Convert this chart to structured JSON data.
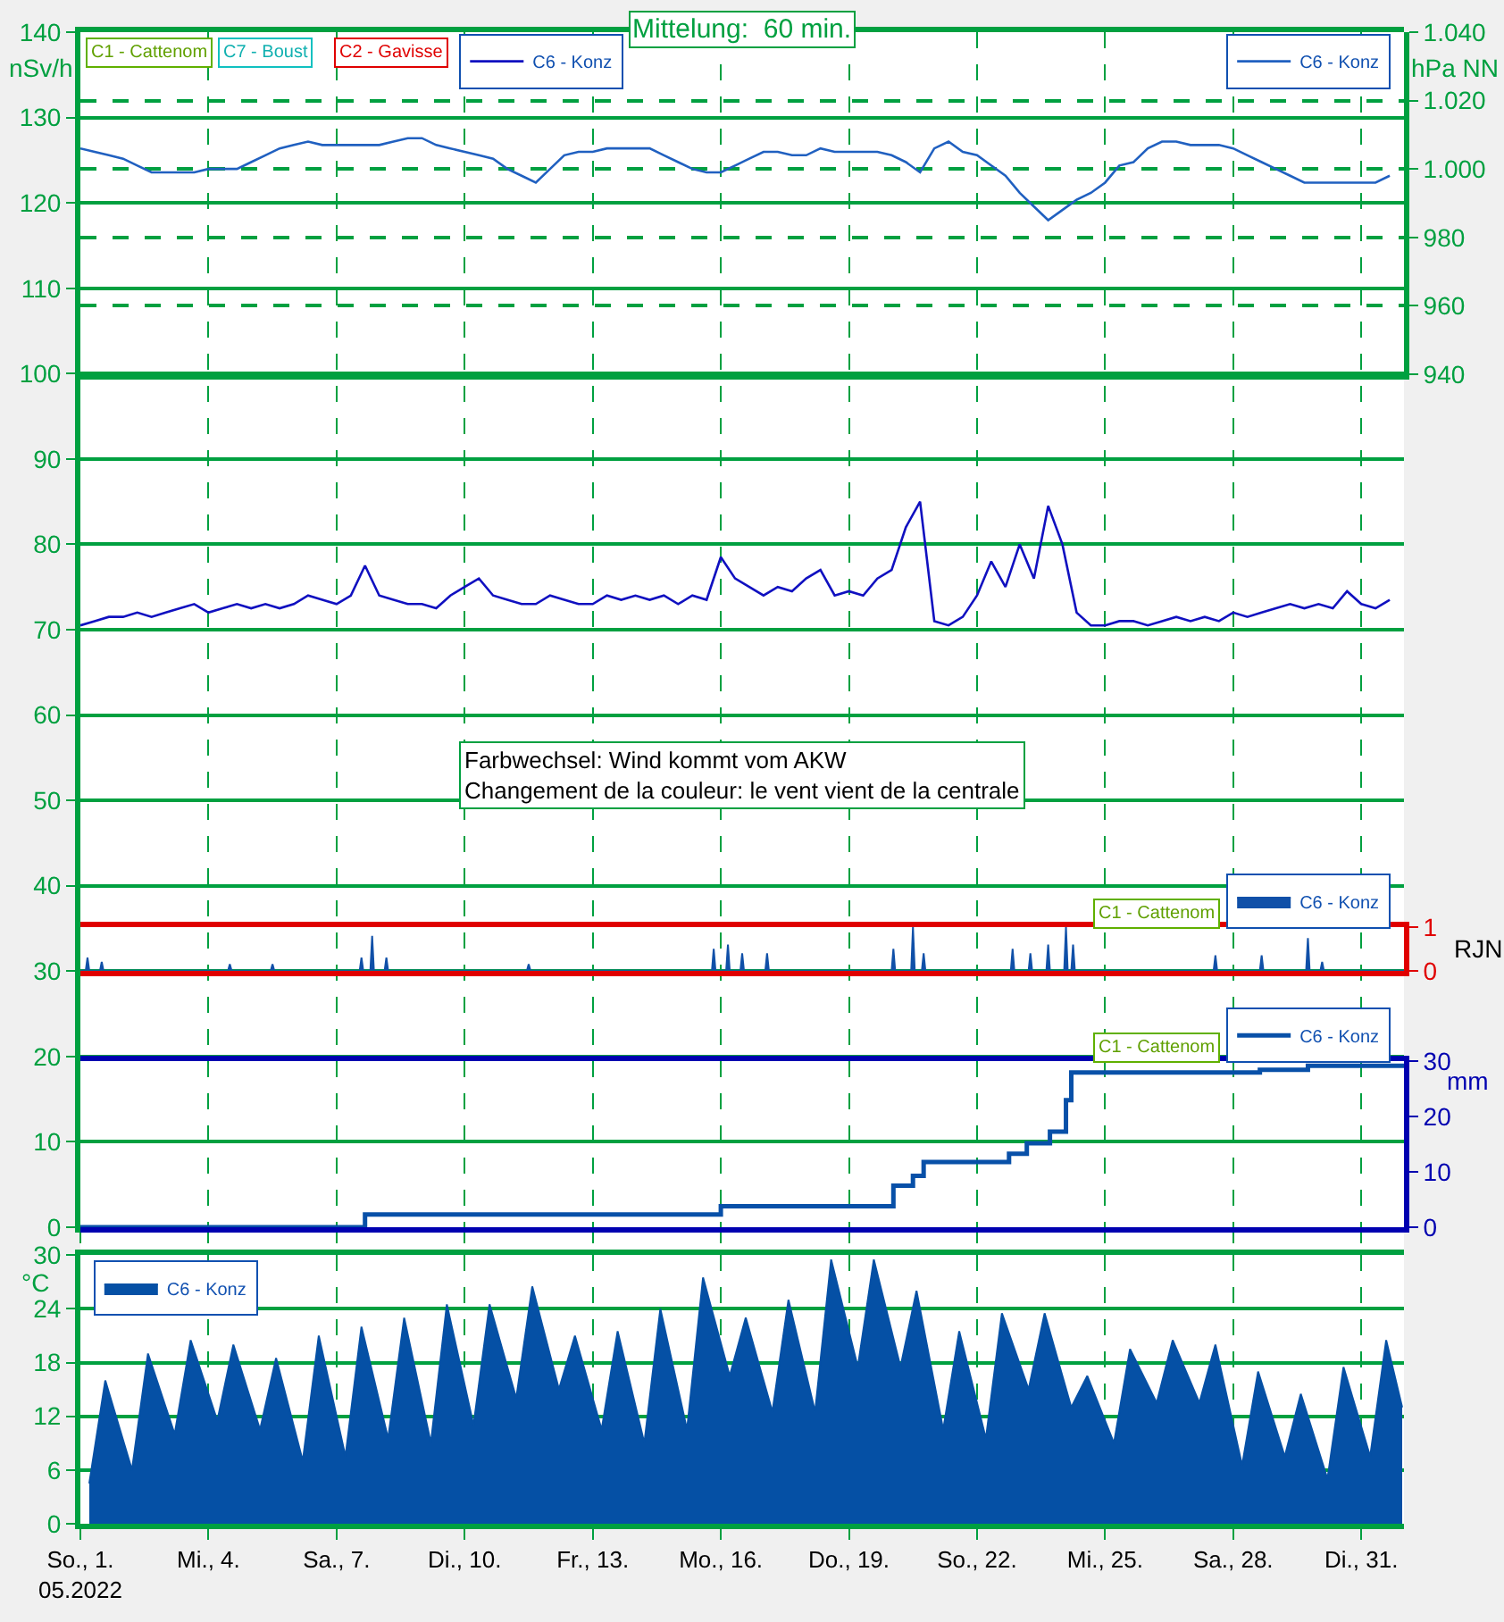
{
  "chart_data": [
    {
      "type": "line",
      "title": "Mittelung:  60 min.",
      "ylabel": "nSv/h",
      "x": [
        "2022-05-01T00:00",
        "2022-05-01T08:00",
        "2022-05-01T16:00",
        "2022-05-02T00:00",
        "2022-05-02T08:00",
        "2022-05-02T16:00",
        "2022-05-03T00:00",
        "2022-05-03T08:00",
        "2022-05-03T16:00",
        "2022-05-04T00:00",
        "2022-05-04T08:00",
        "2022-05-04T16:00",
        "2022-05-05T00:00",
        "2022-05-05T08:00",
        "2022-05-05T16:00",
        "2022-05-06T00:00",
        "2022-05-06T08:00",
        "2022-05-06T16:00",
        "2022-05-07T00:00",
        "2022-05-07T08:00",
        "2022-05-07T16:00",
        "2022-05-08T00:00",
        "2022-05-08T08:00",
        "2022-05-08T16:00",
        "2022-05-09T00:00",
        "2022-05-09T08:00",
        "2022-05-09T16:00",
        "2022-05-10T00:00",
        "2022-05-10T08:00",
        "2022-05-10T16:00",
        "2022-05-11T00:00",
        "2022-05-11T08:00",
        "2022-05-11T16:00",
        "2022-05-12T00:00",
        "2022-05-12T08:00",
        "2022-05-12T16:00",
        "2022-05-13T00:00",
        "2022-05-13T08:00",
        "2022-05-13T16:00",
        "2022-05-14T00:00",
        "2022-05-14T08:00",
        "2022-05-14T16:00",
        "2022-05-15T00:00",
        "2022-05-15T08:00",
        "2022-05-15T16:00",
        "2022-05-16T00:00",
        "2022-05-16T08:00",
        "2022-05-16T16:00",
        "2022-05-17T00:00",
        "2022-05-17T08:00",
        "2022-05-17T16:00",
        "2022-05-18T00:00",
        "2022-05-18T08:00",
        "2022-05-18T16:00",
        "2022-05-19T00:00",
        "2022-05-19T08:00",
        "2022-05-19T16:00",
        "2022-05-20T00:00",
        "2022-05-20T08:00",
        "2022-05-20T16:00",
        "2022-05-21T00:00",
        "2022-05-21T08:00",
        "2022-05-21T16:00",
        "2022-05-22T00:00",
        "2022-05-22T08:00",
        "2022-05-22T16:00",
        "2022-05-23T00:00",
        "2022-05-23T08:00",
        "2022-05-23T16:00",
        "2022-05-24T00:00",
        "2022-05-24T08:00",
        "2022-05-24T16:00",
        "2022-05-25T00:00",
        "2022-05-25T08:00",
        "2022-05-25T16:00",
        "2022-05-26T00:00",
        "2022-05-26T08:00",
        "2022-05-26T16:00",
        "2022-05-27T00:00",
        "2022-05-27T08:00",
        "2022-05-27T16:00",
        "2022-05-28T00:00",
        "2022-05-28T08:00",
        "2022-05-28T16:00",
        "2022-05-29T00:00",
        "2022-05-29T08:00",
        "2022-05-29T16:00",
        "2022-05-30T00:00",
        "2022-05-30T08:00",
        "2022-05-30T16:00",
        "2022-05-31T00:00",
        "2022-05-31T08:00",
        "2022-05-31T16:00"
      ],
      "series": [
        {
          "name": "C6 - Konz",
          "color": "#1010c0",
          "values": [
            70.5,
            71,
            71.5,
            71.5,
            72,
            71.5,
            72,
            72.5,
            73,
            72,
            72.5,
            73,
            72.5,
            73,
            72.5,
            73,
            74,
            73.5,
            73,
            74,
            77.5,
            74,
            73.5,
            73,
            73,
            72.5,
            74,
            75,
            76,
            74,
            73.5,
            73,
            73,
            74,
            73.5,
            73,
            73,
            74,
            73.5,
            74,
            73.5,
            74,
            73,
            74,
            73.5,
            78.5,
            76,
            75,
            74,
            75,
            74.5,
            76,
            77,
            74,
            74.5,
            74,
            76,
            77,
            82,
            85,
            71,
            70.5,
            71.5,
            74,
            78,
            75,
            80,
            76,
            84.5,
            80,
            72,
            70.5,
            70.5,
            71,
            71,
            70.5,
            71,
            71.5,
            71,
            71.5,
            71,
            72,
            71.5,
            72,
            72.5,
            73,
            72.5,
            73,
            72.5,
            74.5,
            73,
            72.5,
            73.5
          ]
        }
      ],
      "xlim": [
        "2022-05-01T00:00",
        "2022-06-01T00:00"
      ],
      "xticks": [
        {
          "value": "2022-05-01",
          "label": null
        },
        {
          "value": "2022-05-04",
          "label": null
        },
        {
          "value": "2022-05-07",
          "label": null
        },
        {
          "value": "2022-05-10",
          "label": null
        },
        {
          "value": "2022-05-13",
          "label": null
        },
        {
          "value": "2022-05-16",
          "label": null
        },
        {
          "value": "2022-05-19",
          "label": null
        },
        {
          "value": "2022-05-22",
          "label": null
        },
        {
          "value": "2022-05-25",
          "label": null
        },
        {
          "value": "2022-05-28",
          "label": null
        },
        {
          "value": "2022-05-31",
          "label": null
        }
      ],
      "ylim": [
        0,
        140
      ],
      "yticks": [
        0,
        10,
        20,
        30,
        40,
        50,
        60,
        70,
        80,
        90,
        100,
        110,
        120,
        130,
        140
      ],
      "tick_labels": "y",
      "grid": true,
      "legend": "top left",
      "marker": "none",
      "annotations": [
        "Farbwechsel: Wind kommt vom AKW\nChangement de la couleur: le vent vient de la centrale",
        "C1 - Cattenom",
        "C7 - Boust",
        "C2 - Gavisse"
      ]
    },
    {
      "type": "line",
      "ylabel": "hPa NN",
      "x": [
        "2022-05-01T00:00",
        "2022-05-01T08:00",
        "2022-05-01T16:00",
        "2022-05-02T00:00",
        "2022-05-02T08:00",
        "2022-05-02T16:00",
        "2022-05-03T00:00",
        "2022-05-03T08:00",
        "2022-05-03T16:00",
        "2022-05-04T00:00",
        "2022-05-04T08:00",
        "2022-05-04T16:00",
        "2022-05-05T00:00",
        "2022-05-05T08:00",
        "2022-05-05T16:00",
        "2022-05-06T00:00",
        "2022-05-06T08:00",
        "2022-05-06T16:00",
        "2022-05-07T00:00",
        "2022-05-07T08:00",
        "2022-05-07T16:00",
        "2022-05-08T00:00",
        "2022-05-08T08:00",
        "2022-05-08T16:00",
        "2022-05-09T00:00",
        "2022-05-09T08:00",
        "2022-05-09T16:00",
        "2022-05-10T00:00",
        "2022-05-10T08:00",
        "2022-05-10T16:00",
        "2022-05-11T00:00",
        "2022-05-11T08:00",
        "2022-05-11T16:00",
        "2022-05-12T00:00",
        "2022-05-12T08:00",
        "2022-05-12T16:00",
        "2022-05-13T00:00",
        "2022-05-13T08:00",
        "2022-05-13T16:00",
        "2022-05-14T00:00",
        "2022-05-14T08:00",
        "2022-05-14T16:00",
        "2022-05-15T00:00",
        "2022-05-15T08:00",
        "2022-05-15T16:00",
        "2022-05-16T00:00",
        "2022-05-16T08:00",
        "2022-05-16T16:00",
        "2022-05-17T00:00",
        "2022-05-17T08:00",
        "2022-05-17T16:00",
        "2022-05-18T00:00",
        "2022-05-18T08:00",
        "2022-05-18T16:00",
        "2022-05-19T00:00",
        "2022-05-19T08:00",
        "2022-05-19T16:00",
        "2022-05-20T00:00",
        "2022-05-20T08:00",
        "2022-05-20T16:00",
        "2022-05-21T00:00",
        "2022-05-21T08:00",
        "2022-05-21T16:00",
        "2022-05-22T00:00",
        "2022-05-22T08:00",
        "2022-05-22T16:00",
        "2022-05-23T00:00",
        "2022-05-23T08:00",
        "2022-05-23T16:00",
        "2022-05-24T00:00",
        "2022-05-24T08:00",
        "2022-05-24T16:00",
        "2022-05-25T00:00",
        "2022-05-25T08:00",
        "2022-05-25T16:00",
        "2022-05-26T00:00",
        "2022-05-26T08:00",
        "2022-05-26T16:00",
        "2022-05-27T00:00",
        "2022-05-27T08:00",
        "2022-05-27T16:00",
        "2022-05-28T00:00",
        "2022-05-28T08:00",
        "2022-05-28T16:00",
        "2022-05-29T00:00",
        "2022-05-29T08:00",
        "2022-05-29T16:00",
        "2022-05-30T00:00",
        "2022-05-30T08:00",
        "2022-05-30T16:00",
        "2022-05-31T00:00",
        "2022-05-31T08:00",
        "2022-05-31T16:00"
      ],
      "series": [
        {
          "name": "C6 - Konz",
          "color": "#2060c0",
          "values": [
            1006,
            1005,
            1004,
            1003,
            1001,
            999,
            999,
            999,
            999,
            1000,
            1000,
            1000,
            1002,
            1004,
            1006,
            1007,
            1008,
            1007,
            1007,
            1007,
            1007,
            1007,
            1008,
            1009,
            1009,
            1007,
            1006,
            1005,
            1004,
            1003,
            1000,
            998,
            996,
            1000,
            1004,
            1005,
            1005,
            1006,
            1006,
            1006,
            1006,
            1004,
            1002,
            1000,
            999,
            999,
            1001,
            1003,
            1005,
            1005,
            1004,
            1004,
            1006,
            1005,
            1005,
            1005,
            1005,
            1004,
            1002,
            999,
            1006,
            1008,
            1005,
            1004,
            1001,
            998,
            993,
            989,
            985,
            988,
            991,
            993,
            996,
            1001,
            1002,
            1006,
            1008,
            1008,
            1007,
            1007,
            1007,
            1006,
            1004,
            1002,
            1000,
            998,
            996,
            996,
            996,
            996,
            996,
            996,
            998
          ]
        }
      ],
      "xlim": [
        "2022-05-01T00:00",
        "2022-06-01T00:00"
      ],
      "ylim": [
        940,
        1040
      ],
      "yticks": [
        940,
        960,
        980,
        {
          "value": 1000,
          "label": "1.000"
        },
        {
          "value": 1020,
          "label": "1.020"
        },
        {
          "value": 1040,
          "label": "1.040"
        }
      ],
      "tick_labels": "y",
      "grid": "y",
      "legend": "top right",
      "marker": "none"
    },
    {
      "type": "area",
      "ylabel": "RJN",
      "series": [
        {
          "name": "C6 - Konz",
          "color": "#1050a8",
          "x": [
            "2022-05-01T00:00",
            "2022-05-01T03:00",
            "2022-05-01T04:00",
            "2022-05-01T05:00",
            "2022-05-01T11:00",
            "2022-05-01T12:00",
            "2022-05-01T13:00",
            "2022-05-04T11:00",
            "2022-05-04T12:00",
            "2022-05-04T13:00",
            "2022-05-05T11:00",
            "2022-05-05T12:00",
            "2022-05-05T13:00",
            "2022-05-07T13:00",
            "2022-05-07T14:00",
            "2022-05-07T15:00",
            "2022-05-07T19:00",
            "2022-05-07T20:00",
            "2022-05-07T21:00",
            "2022-05-08T03:00",
            "2022-05-08T04:00",
            "2022-05-08T05:00",
            "2022-05-11T11:00",
            "2022-05-11T12:00",
            "2022-05-11T13:00",
            "2022-05-15T19:00",
            "2022-05-15T20:00",
            "2022-05-15T21:00",
            "2022-05-16T03:00",
            "2022-05-16T04:00",
            "2022-05-16T05:00",
            "2022-05-16T11:00",
            "2022-05-16T12:00",
            "2022-05-16T13:00",
            "2022-05-17T01:00",
            "2022-05-17T02:00",
            "2022-05-17T03:00",
            "2022-05-20T00:00",
            "2022-05-20T01:00",
            "2022-05-20T02:00",
            "2022-05-20T11:00",
            "2022-05-20T12:00",
            "2022-05-20T13:00",
            "2022-05-20T17:00",
            "2022-05-20T18:00",
            "2022-05-20T19:00",
            "2022-05-22T19:00",
            "2022-05-22T20:00",
            "2022-05-22T21:00",
            "2022-05-23T05:00",
            "2022-05-23T06:00",
            "2022-05-23T07:00",
            "2022-05-23T15:00",
            "2022-05-23T16:00",
            "2022-05-23T17:00",
            "2022-05-24T01:00",
            "2022-05-24T02:00",
            "2022-05-24T03:00",
            "2022-05-24T05:00",
            "2022-05-24T06:00",
            "2022-05-24T07:00",
            "2022-05-27T13:00",
            "2022-05-27T14:00",
            "2022-05-27T15:00",
            "2022-05-28T15:00",
            "2022-05-28T16:00",
            "2022-05-28T17:00",
            "2022-05-29T17:00",
            "2022-05-29T18:00",
            "2022-05-29T19:00",
            "2022-05-30T01:00",
            "2022-05-30T02:00",
            "2022-05-30T03:00",
            "2022-06-01T00:00"
          ],
          "values": [
            0,
            0,
            0.3,
            0,
            0,
            0.2,
            0,
            0,
            0.15,
            0,
            0,
            0.15,
            0,
            0,
            0.3,
            0,
            0,
            0.8,
            0,
            0,
            0.3,
            0,
            0,
            0.15,
            0,
            0,
            0.5,
            0,
            0,
            0.6,
            0,
            0,
            0.4,
            0,
            0,
            0.4,
            0,
            0,
            0.5,
            0,
            0,
            1.0,
            0,
            0,
            0.4,
            0,
            0,
            0.5,
            0,
            0,
            0.4,
            0,
            0,
            0.6,
            0,
            0,
            1.0,
            0,
            0,
            0.6,
            0,
            0,
            0.35,
            0,
            0,
            0.35,
            0,
            0,
            0.75,
            0,
            0,
            0.2,
            0,
            0
          ]
        }
      ],
      "xlim": [
        "2022-05-01T00:00",
        "2022-06-01T00:00"
      ],
      "ylim": [
        0,
        1
      ],
      "yticks": [
        0,
        1
      ],
      "tick_labels": "y",
      "legend": "top right",
      "marker": "none",
      "annotations": [
        "C1 - Cattenom"
      ]
    },
    {
      "type": "step",
      "ylabel": "mm",
      "series": [
        {
          "name": "C6 - Konz",
          "color": "#0850a8",
          "x": [
            "2022-05-01T00:00",
            "2022-05-07T16:00",
            "2022-05-16T00:00",
            "2022-05-20T01:00",
            "2022-05-20T12:00",
            "2022-05-20T18:00",
            "2022-05-22T18:00",
            "2022-05-23T04:00",
            "2022-05-23T17:00",
            "2022-05-24T02:00",
            "2022-05-24T05:00",
            "2022-05-28T15:00",
            "2022-05-29T18:00",
            "2022-06-01T00:00"
          ],
          "values": [
            0,
            2.3,
            3.8,
            7.5,
            9.3,
            11.8,
            13.3,
            15.2,
            17.3,
            23,
            28,
            28.5,
            29.2,
            29.2
          ]
        }
      ],
      "xlim": [
        "2022-05-01T00:00",
        "2022-06-01T00:00"
      ],
      "ylim": [
        0,
        30
      ],
      "yticks": [
        0,
        10,
        20,
        30
      ],
      "tick_labels": "y",
      "legend": "top right",
      "marker": "none",
      "annotations": [
        "C1 - Cattenom"
      ]
    },
    {
      "type": "area",
      "ylabel": "°C",
      "x": [
        "2022-05-01T05:00",
        "2022-05-01T14:00",
        "2022-05-02T05:00",
        "2022-05-02T14:00",
        "2022-05-03T05:00",
        "2022-05-03T14:00",
        "2022-05-04T05:00",
        "2022-05-04T14:00",
        "2022-05-05T05:00",
        "2022-05-05T14:00",
        "2022-05-06T05:00",
        "2022-05-06T14:00",
        "2022-05-07T05:00",
        "2022-05-07T14:00",
        "2022-05-08T05:00",
        "2022-05-08T14:00",
        "2022-05-09T05:00",
        "2022-05-09T14:00",
        "2022-05-10T05:00",
        "2022-05-10T14:00",
        "2022-05-11T05:00",
        "2022-05-11T14:00",
        "2022-05-12T05:00",
        "2022-05-12T14:00",
        "2022-05-13T05:00",
        "2022-05-13T14:00",
        "2022-05-14T05:00",
        "2022-05-14T14:00",
        "2022-05-15T05:00",
        "2022-05-15T14:00",
        "2022-05-16T05:00",
        "2022-05-16T14:00",
        "2022-05-17T05:00",
        "2022-05-17T14:00",
        "2022-05-18T05:00",
        "2022-05-18T14:00",
        "2022-05-19T05:00",
        "2022-05-19T14:00",
        "2022-05-20T05:00",
        "2022-05-20T14:00",
        "2022-05-21T05:00",
        "2022-05-21T14:00",
        "2022-05-22T05:00",
        "2022-05-22T14:00",
        "2022-05-23T05:00",
        "2022-05-23T14:00",
        "2022-05-24T05:00",
        "2022-05-24T14:00",
        "2022-05-25T05:00",
        "2022-05-25T14:00",
        "2022-05-26T05:00",
        "2022-05-26T14:00",
        "2022-05-27T05:00",
        "2022-05-27T14:00",
        "2022-05-28T05:00",
        "2022-05-28T14:00",
        "2022-05-29T05:00",
        "2022-05-29T14:00",
        "2022-05-30T05:00",
        "2022-05-30T14:00",
        "2022-05-31T05:00",
        "2022-05-31T14:00",
        "2022-05-31T23:00"
      ],
      "series": [
        {
          "name": "C6 - Konz",
          "color": "#0550a5",
          "values": [
            4.5,
            16,
            6,
            19,
            10,
            20.5,
            11.5,
            20,
            10.5,
            18.5,
            7,
            21,
            7.5,
            22,
            9.5,
            23,
            9,
            24.5,
            11,
            24.5,
            14,
            26.5,
            15,
            21,
            10.5,
            21.5,
            9,
            24,
            10.5,
            27.5,
            16.5,
            23,
            12.5,
            25,
            12.5,
            29.5,
            17.5,
            29.5,
            17.5,
            26,
            10.5,
            21.5,
            9.5,
            23.5,
            15,
            23.5,
            13,
            16.5,
            9,
            19.5,
            13.5,
            20.5,
            13.5,
            20,
            6.5,
            17,
            7.5,
            14.5,
            5,
            17.5,
            7.5,
            20.5,
            13
          ]
        }
      ],
      "xlim": [
        "2022-05-01T00:00",
        "2022-06-01T00:00"
      ],
      "xticks": [
        {
          "value": "2022-05-01",
          "label": "So., 1.\n05.2022"
        },
        {
          "value": "2022-05-04",
          "label": "Mi., 4."
        },
        {
          "value": "2022-05-07",
          "label": "Sa., 7."
        },
        {
          "value": "2022-05-10",
          "label": "Di., 10."
        },
        {
          "value": "2022-05-13",
          "label": "Fr., 13."
        },
        {
          "value": "2022-05-16",
          "label": "Mo., 16."
        },
        {
          "value": "2022-05-19",
          "label": "Do., 19."
        },
        {
          "value": "2022-05-22",
          "label": "So., 22."
        },
        {
          "value": "2022-05-25",
          "label": "Mi., 25."
        },
        {
          "value": "2022-05-28",
          "label": "Sa., 28."
        },
        {
          "value": "2022-05-31",
          "label": "Di., 31."
        }
      ],
      "ylim": [
        0,
        30
      ],
      "yticks": [
        0,
        6,
        12,
        18,
        24,
        30
      ],
      "grid": true,
      "legend": "top left",
      "marker": "none"
    }
  ]
}
